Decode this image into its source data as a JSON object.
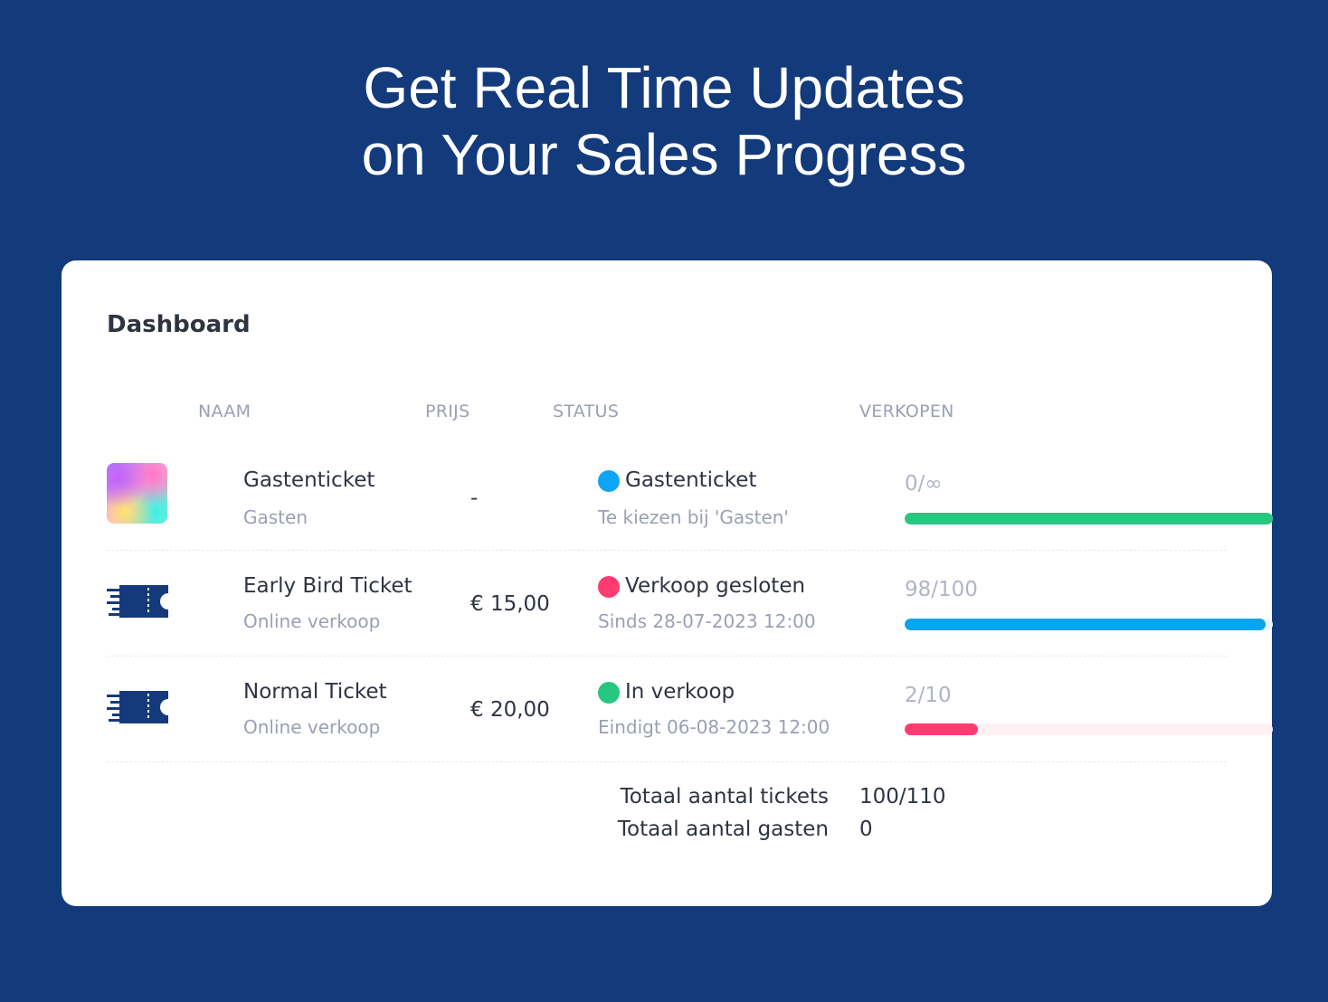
{
  "hero": {
    "line1": "Get Real Time Updates",
    "line2": "on Your Sales Progress"
  },
  "dashboard": {
    "title": "Dashboard",
    "columns": {
      "name": "NAAM",
      "price": "PRIJS",
      "status": "STATUS",
      "sales": "VERKOPEN"
    },
    "rows": [
      {
        "name": "Gastenticket",
        "subtitle": "Gasten",
        "price": "-",
        "status": "Gastenticket",
        "status_detail": "Te kiezen bij 'Gasten'",
        "status_color": "#0ea5f5",
        "sales": "0/∞",
        "progress": 1.0,
        "bar_color": "#26c77f",
        "track_color": "#e8f8f0",
        "icon": "gradient-thumbnail"
      },
      {
        "name": "Early Bird Ticket",
        "subtitle": "Online verkoop",
        "price": "€ 15,00",
        "status": "Verkoop gesloten",
        "status_detail": "Sinds 28-07-2023 12:00",
        "status_color": "#ff3b72",
        "sales": "98/100",
        "progress": 0.98,
        "bar_color": "#06a5f2",
        "track_color": "#eaf6fe",
        "icon": "ticket-icon"
      },
      {
        "name": "Normal Ticket",
        "subtitle": "Online verkoop",
        "price": "€ 20,00",
        "status": "In verkoop",
        "status_detail": "Eindigt 06-08-2023 12:00",
        "status_color": "#26c77f",
        "sales": "2/10",
        "progress": 0.2,
        "bar_color": "#ff3b72",
        "track_color": "#fff0f4",
        "icon": "ticket-icon"
      }
    ],
    "totals": {
      "tickets_label": "Totaal aantal tickets",
      "tickets_value": "100/110",
      "guests_label": "Totaal aantal gasten",
      "guests_value": "0"
    }
  }
}
